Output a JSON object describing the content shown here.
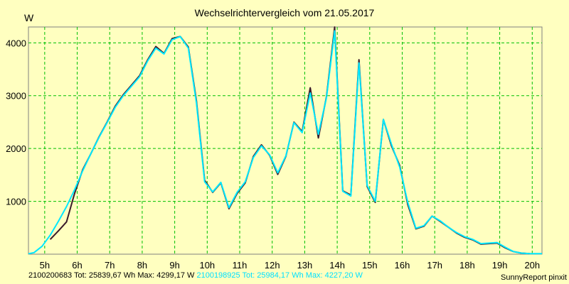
{
  "chart_data": {
    "type": "line",
    "title": "Wechselrichtervergleich vom 21.05.2017",
    "ylabel": "W",
    "xlabel": "",
    "xlim": [
      4.5,
      20.3
    ],
    "ylim": [
      0,
      4300
    ],
    "grid": true,
    "x_ticks": [
      5,
      6,
      7,
      8,
      9,
      10,
      11,
      12,
      13,
      14,
      15,
      16,
      17,
      18,
      19,
      20
    ],
    "x_tick_labels": [
      "5h",
      "6h",
      "7h",
      "8h",
      "9h",
      "10h",
      "11h",
      "12h",
      "13h",
      "14h",
      "15h",
      "16h",
      "17h",
      "18h",
      "19h",
      "20h"
    ],
    "y_ticks": [
      1000,
      2000,
      3000,
      4000
    ],
    "y_tick_labels": [
      "1000",
      "2000",
      "3000",
      "4000"
    ],
    "background_color": "#ffffc0",
    "grid_color": "#00c000",
    "series": [
      {
        "name": "2100200683",
        "color": "#3a1a2a",
        "x": [
          5.17,
          5.42,
          5.67,
          5.92,
          6.17,
          6.42,
          6.67,
          6.92,
          7.17,
          7.42,
          7.67,
          7.92,
          8.17,
          8.42,
          8.67,
          8.92,
          9.17,
          9.42,
          9.67,
          9.92,
          10.17,
          10.42,
          10.67,
          10.92,
          11.17,
          11.42,
          11.67,
          11.92,
          12.17,
          12.42,
          12.67,
          12.92,
          13.17,
          13.42,
          13.67,
          13.92,
          14.17,
          14.42,
          14.67,
          14.92,
          15.17,
          15.42,
          15.67,
          15.92,
          16.17,
          16.42,
          16.67,
          16.92,
          17.17,
          17.42,
          17.67,
          17.92,
          18.17,
          18.42,
          18.67,
          18.92,
          19.17,
          19.42,
          19.67,
          19.92
        ],
        "y": [
          280,
          440,
          610,
          1150,
          1600,
          1900,
          2220,
          2500,
          2800,
          3020,
          3200,
          3380,
          3680,
          3930,
          3800,
          4080,
          4120,
          3920,
          2900,
          1400,
          1170,
          1350,
          860,
          1150,
          1350,
          1850,
          2070,
          1870,
          1510,
          1850,
          2500,
          2320,
          3150,
          2200,
          2980,
          4299,
          1200,
          1120,
          3680,
          1280,
          980,
          2550,
          2050,
          1680,
          940,
          480,
          530,
          720,
          620,
          510,
          400,
          320,
          270,
          190,
          200,
          210,
          120,
          50,
          20,
          10
        ]
      },
      {
        "name": "2100198925",
        "color": "#00e8ff",
        "x": [
          4.5,
          4.67,
          4.92,
          5.17,
          5.42,
          5.67,
          5.92,
          6.17,
          6.42,
          6.67,
          6.92,
          7.17,
          7.42,
          7.67,
          7.92,
          8.17,
          8.42,
          8.67,
          8.92,
          9.17,
          9.42,
          9.67,
          9.92,
          10.17,
          10.42,
          10.67,
          10.92,
          11.17,
          11.42,
          11.67,
          11.92,
          12.17,
          12.42,
          12.67,
          12.92,
          13.17,
          13.42,
          13.67,
          13.92,
          14.17,
          14.42,
          14.67,
          14.92,
          15.17,
          15.42,
          15.67,
          15.92,
          16.17,
          16.42,
          16.67,
          16.92,
          17.17,
          17.42,
          17.67,
          17.92,
          18.17,
          18.42,
          18.67,
          18.92,
          19.17,
          19.42,
          19.67,
          19.92,
          20.17,
          20.3
        ],
        "y": [
          10,
          30,
          150,
          360,
          620,
          900,
          1220,
          1580,
          1900,
          2210,
          2490,
          2780,
          3000,
          3180,
          3360,
          3660,
          3900,
          3790,
          4060,
          4120,
          3900,
          2860,
          1370,
          1180,
          1360,
          880,
          1170,
          1370,
          1830,
          2050,
          1880,
          1540,
          1860,
          2490,
          2300,
          3050,
          2270,
          2960,
          4227,
          1190,
          1100,
          3620,
          1300,
          1000,
          2550,
          2080,
          1650,
          980,
          490,
          540,
          720,
          630,
          510,
          410,
          330,
          280,
          200,
          210,
          220,
          130,
          50,
          20,
          10,
          10,
          10
        ]
      }
    ]
  },
  "footer": {
    "series1_text": "2100200683 Tot: 25839,67 Wh Max: 4299,17 W",
    "series2_text": "2100198925 Tot: 25984,17 Wh Max: 4227,20 W",
    "credit": "SunnyReport pinxit"
  }
}
